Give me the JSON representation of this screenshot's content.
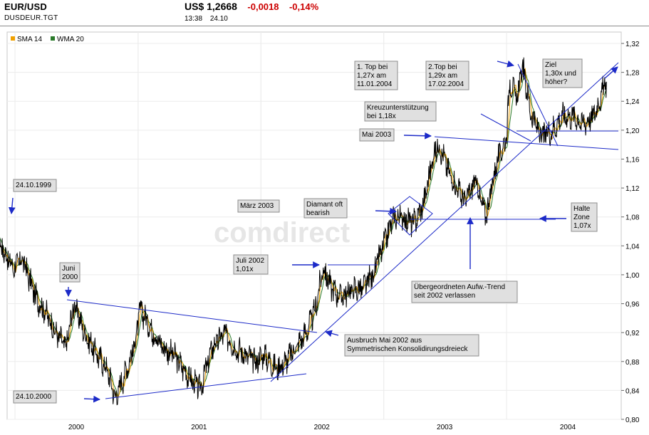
{
  "header": {
    "title": "EUR/USD",
    "symbol": "DUSDEUR.TGT",
    "price": "US$ 1,2668",
    "change_abs": "-0,0018",
    "change_pct": "-0,14%",
    "time": "13:38",
    "date": "24.10",
    "change_color": "#cc0000"
  },
  "watermark": "comdirect",
  "chart_data": {
    "type": "line",
    "ylim": [
      0.8,
      1.32
    ],
    "y_ticks": [
      "0,80",
      "0,84",
      "0,88",
      "0,92",
      "0,96",
      "1,00",
      "1,04",
      "1,08",
      "1,12",
      "1,16",
      "1,20",
      "1,24",
      "1,28",
      "1,32"
    ],
    "x_ticks": [
      "2000",
      "2001",
      "2002",
      "2003",
      "2004"
    ],
    "legend": [
      {
        "name": "SMA 14",
        "color": "#f0a000"
      },
      {
        "name": "WMA 20",
        "color": "#2a7a2a"
      }
    ],
    "legend_position": "top-left",
    "grid": true,
    "line_color": "#000000",
    "anchors": [
      {
        "x": "1999-10-24",
        "y": 1.073
      },
      {
        "x": "1999-11-20",
        "y": 1.04
      },
      {
        "x": "1999-12-25",
        "y": 1.01
      },
      {
        "x": "2000-01-25",
        "y": 1.02
      },
      {
        "x": "2000-03-01",
        "y": 0.97
      },
      {
        "x": "2000-03-31",
        "y": 0.95
      },
      {
        "x": "2000-04-30",
        "y": 0.92
      },
      {
        "x": "2000-05-31",
        "y": 0.9
      },
      {
        "x": "2000-06-25",
        "y": 0.96
      },
      {
        "x": "2000-07-25",
        "y": 0.92
      },
      {
        "x": "2000-08-31",
        "y": 0.89
      },
      {
        "x": "2000-09-30",
        "y": 0.87
      },
      {
        "x": "2000-10-25",
        "y": 0.83
      },
      {
        "x": "2000-11-20",
        "y": 0.86
      },
      {
        "x": "2000-12-20",
        "y": 0.9
      },
      {
        "x": "2001-01-07",
        "y": 0.953
      },
      {
        "x": "2001-02-15",
        "y": 0.92
      },
      {
        "x": "2001-03-15",
        "y": 0.9
      },
      {
        "x": "2001-04-15",
        "y": 0.89
      },
      {
        "x": "2001-05-15",
        "y": 0.87
      },
      {
        "x": "2001-06-15",
        "y": 0.85
      },
      {
        "x": "2001-07-05",
        "y": 0.843
      },
      {
        "x": "2001-08-10",
        "y": 0.9
      },
      {
        "x": "2001-09-15",
        "y": 0.92
      },
      {
        "x": "2001-10-15",
        "y": 0.9
      },
      {
        "x": "2001-11-15",
        "y": 0.89
      },
      {
        "x": "2001-12-15",
        "y": 0.88
      },
      {
        "x": "2002-01-10",
        "y": 0.89
      },
      {
        "x": "2002-02-15",
        "y": 0.87
      },
      {
        "x": "2002-03-15",
        "y": 0.88
      },
      {
        "x": "2002-04-15",
        "y": 0.9
      },
      {
        "x": "2002-05-15",
        "y": 0.92
      },
      {
        "x": "2002-06-10",
        "y": 0.95
      },
      {
        "x": "2002-07-05",
        "y": 1.01
      },
      {
        "x": "2002-07-31",
        "y": 0.98
      },
      {
        "x": "2002-08-31",
        "y": 0.97
      },
      {
        "x": "2002-09-30",
        "y": 0.98
      },
      {
        "x": "2002-10-31",
        "y": 0.98
      },
      {
        "x": "2002-11-30",
        "y": 1.0
      },
      {
        "x": "2002-12-31",
        "y": 1.04
      },
      {
        "x": "2003-01-31",
        "y": 1.08
      },
      {
        "x": "2003-02-28",
        "y": 1.08
      },
      {
        "x": "2003-03-31",
        "y": 1.07
      },
      {
        "x": "2003-04-30",
        "y": 1.1
      },
      {
        "x": "2003-05-31",
        "y": 1.17
      },
      {
        "x": "2003-06-15",
        "y": 1.18
      },
      {
        "x": "2003-07-15",
        "y": 1.14
      },
      {
        "x": "2003-08-31",
        "y": 1.1
      },
      {
        "x": "2003-09-30",
        "y": 1.13
      },
      {
        "x": "2003-10-31",
        "y": 1.08
      },
      {
        "x": "2003-11-30",
        "y": 1.15
      },
      {
        "x": "2003-12-31",
        "y": 1.19
      },
      {
        "x": "2004-01-11",
        "y": 1.27
      },
      {
        "x": "2004-01-31",
        "y": 1.24
      },
      {
        "x": "2004-02-17",
        "y": 1.29
      },
      {
        "x": "2004-03-15",
        "y": 1.22
      },
      {
        "x": "2004-04-15",
        "y": 1.19
      },
      {
        "x": "2004-05-15",
        "y": 1.2
      },
      {
        "x": "2004-06-15",
        "y": 1.22
      },
      {
        "x": "2004-07-15",
        "y": 1.22
      },
      {
        "x": "2004-08-15",
        "y": 1.21
      },
      {
        "x": "2004-09-15",
        "y": 1.22
      },
      {
        "x": "2004-10-24",
        "y": 1.267
      }
    ],
    "annotations": [
      {
        "id": "a-1999",
        "lines": [
          "24.10.1999"
        ]
      },
      {
        "id": "a-juni2000",
        "lines": [
          "Juni",
          "2000"
        ]
      },
      {
        "id": "a-2000",
        "lines": [
          "24.10.2000"
        ]
      },
      {
        "id": "a-maerz",
        "lines": [
          "März 2003"
        ]
      },
      {
        "id": "a-diamant",
        "lines": [
          "Diamant oft",
          "bearish"
        ]
      },
      {
        "id": "a-juli",
        "lines": [
          "Juli 2002",
          "1,01x"
        ]
      },
      {
        "id": "a-ausbruch",
        "lines": [
          "Ausbruch Mai 2002 aus",
          "Symmetrischen Konsolidirungsdreieck"
        ]
      },
      {
        "id": "a-mai2003",
        "lines": [
          "Mai 2003"
        ]
      },
      {
        "id": "a-kreuz",
        "lines": [
          "Kreuzunterstützung",
          "bei 1,18x"
        ]
      },
      {
        "id": "a-top1",
        "lines": [
          "1. Top bei",
          "1,27x am",
          "11.01.2004"
        ]
      },
      {
        "id": "a-top2",
        "lines": [
          "2.Top bei",
          "1,29x am",
          "17.02.2004"
        ]
      },
      {
        "id": "a-ziel",
        "lines": [
          "Ziel",
          "1,30x und",
          "höher?"
        ]
      },
      {
        "id": "a-halte",
        "lines": [
          "Halte",
          "Zone",
          "1,07x"
        ]
      },
      {
        "id": "a-trend",
        "lines": [
          "Übergeordneten Aufw.-Trend",
          "seit 2002 verlassen"
        ]
      }
    ]
  }
}
